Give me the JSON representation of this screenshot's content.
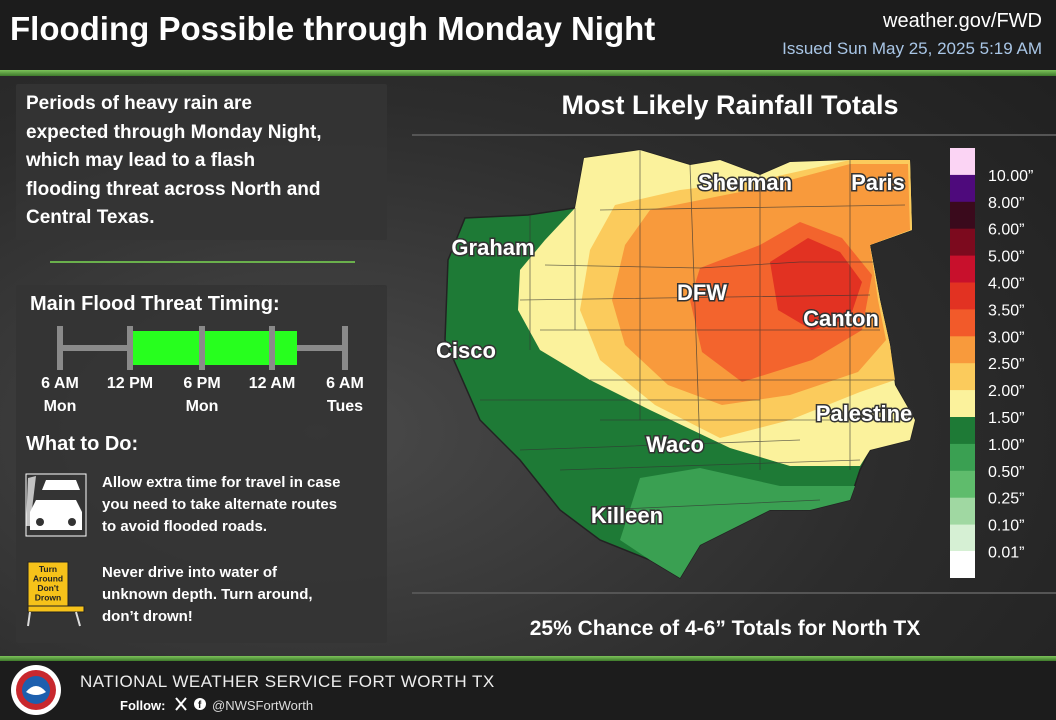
{
  "header": {
    "title": "Flooding Possible through Monday Night",
    "website": "weather.gov/FWD",
    "issued": "Issued Sun May 25, 2025 5:19 AM"
  },
  "summary": [
    "Periods of heavy rain are",
    "expected through Monday Night,",
    "which may lead to a flash",
    "flooding threat across North and",
    "Central Texas."
  ],
  "timing": {
    "title": "Main Flood Threat Timing:",
    "ticks": [
      {
        "time": "6 AM",
        "day": "Mon"
      },
      {
        "time": "12 PM"
      },
      {
        "time": "6 PM",
        "day": "Mon"
      },
      {
        "time": "12 AM"
      },
      {
        "time": "6 AM",
        "day": "Tues"
      }
    ]
  },
  "actions": {
    "title": "What to Do:",
    "items": [
      [
        "Allow extra time for travel in case",
        "you need to take alternate routes",
        "to avoid flooded roads."
      ],
      [
        "Never drive into water of",
        "unknown depth. Turn around,",
        "don’t drown!"
      ]
    ],
    "sign": [
      "Turn",
      "Around",
      "Don't",
      "Drown"
    ]
  },
  "map": {
    "title": "Most Likely Rainfall Totals",
    "cities": [
      "Sherman",
      "Paris",
      "Graham",
      "DFW",
      "Canton",
      "Cisco",
      "Palestine",
      "Waco",
      "Killeen"
    ],
    "legend": [
      {
        "label": "10.00”",
        "color": "#fbd4f4"
      },
      {
        "label": "8.00”",
        "color": "#4e0a7c"
      },
      {
        "label": "6.00”",
        "color": "#3a0a1c"
      },
      {
        "label": "5.00”",
        "color": "#7c0a1e"
      },
      {
        "label": "4.00”",
        "color": "#c8102c"
      },
      {
        "label": "3.50”",
        "color": "#e23222"
      },
      {
        "label": "3.00”",
        "color": "#f25a2a"
      },
      {
        "label": "2.50”",
        "color": "#f89a3c"
      },
      {
        "label": "2.00”",
        "color": "#fbcb5c"
      },
      {
        "label": "1.50”",
        "color": "#fbf29c"
      },
      {
        "label": "1.00”",
        "color": "#1e7a36"
      },
      {
        "label": "0.50”",
        "color": "#3aa052"
      },
      {
        "label": "0.25”",
        "color": "#5fbc6c"
      },
      {
        "label": "0.10”",
        "color": "#a0d8a2"
      },
      {
        "label": "0.01”",
        "color": "#d6f0d4"
      }
    ],
    "note": "25% Chance of 4-6” Totals for North TX"
  },
  "footer": {
    "office": "NATIONAL WEATHER SERVICE FORT WORTH TX",
    "follow": "Follow:",
    "handle": "@NWSFortWorth"
  }
}
